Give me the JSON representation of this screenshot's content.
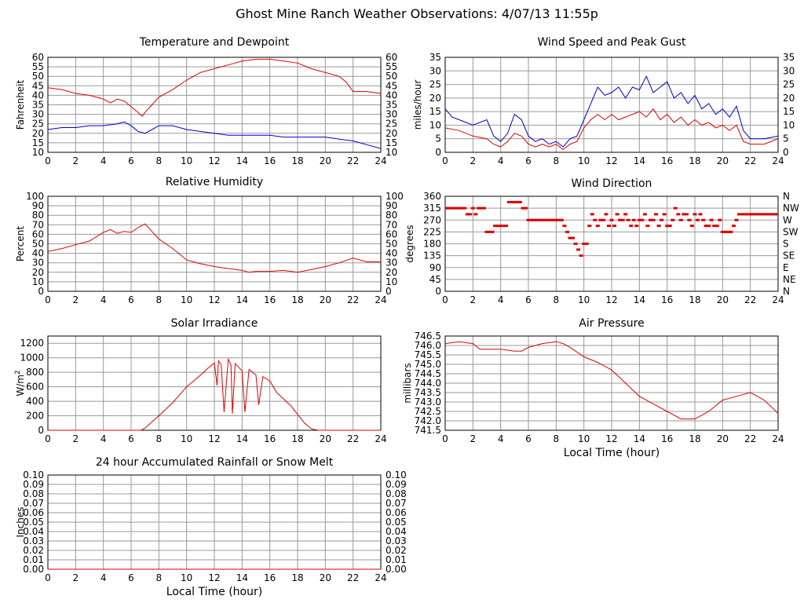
{
  "page_title": "Ghost Mine Ranch Weather Observations: 4/07/13 11:55p",
  "colors": {
    "red": "#dd0000",
    "blue": "#0000cc",
    "grid": "#999999",
    "frame": "#000000"
  },
  "chart_data": [
    {
      "id": "temp",
      "type": "line",
      "title": "Temperature and Dewpoint",
      "ylabel": "Fahrenheit",
      "xlabel": "",
      "xlim": [
        0,
        24
      ],
      "ylim": [
        10,
        60
      ],
      "xticks": [
        0,
        2,
        4,
        6,
        8,
        10,
        12,
        14,
        16,
        18,
        20,
        22,
        24
      ],
      "yticks": [
        10,
        15,
        20,
        25,
        30,
        35,
        40,
        45,
        50,
        55,
        60
      ],
      "right_ticks": [
        "10",
        "15",
        "20",
        "25",
        "30",
        "35",
        "40",
        "45",
        "50",
        "55",
        "60"
      ],
      "grid": true,
      "series": [
        {
          "color": "red",
          "x": [
            0,
            1,
            2,
            3,
            4,
            4.5,
            5,
            5.5,
            6,
            6.5,
            6.8,
            7,
            7.5,
            8,
            9,
            10,
            11,
            12,
            13,
            14,
            15,
            16,
            17,
            18,
            19,
            20,
            21,
            21.5,
            22,
            23,
            24
          ],
          "y": [
            44,
            43,
            41,
            40,
            38,
            36,
            38,
            37,
            34,
            31,
            29,
            31,
            35,
            39,
            43,
            48,
            52,
            54,
            56,
            58,
            59,
            59,
            58,
            57,
            54,
            52,
            50,
            47,
            42,
            42,
            41
          ]
        },
        {
          "color": "blue",
          "x": [
            0,
            1,
            2,
            3,
            4,
            5,
            5.5,
            6,
            6.5,
            7,
            7.5,
            8,
            9,
            10,
            11,
            12,
            13,
            14,
            15,
            16,
            17,
            18,
            19,
            20,
            21,
            22,
            23,
            24
          ],
          "y": [
            22,
            23,
            23,
            24,
            24,
            25,
            26,
            24,
            21,
            20,
            22,
            24,
            24,
            22,
            21,
            20,
            19,
            19,
            19,
            19,
            18,
            18,
            18,
            18,
            17,
            16,
            14,
            12
          ]
        }
      ]
    },
    {
      "id": "wind",
      "type": "line",
      "title": "Wind Speed and Peak Gust",
      "ylabel": "miles/hour",
      "xlabel": "",
      "xlim": [
        0,
        24
      ],
      "ylim": [
        0,
        35
      ],
      "xticks": [
        0,
        2,
        4,
        6,
        8,
        10,
        12,
        14,
        16,
        18,
        20,
        22,
        24
      ],
      "yticks": [
        0,
        5,
        10,
        15,
        20,
        25,
        30,
        35
      ],
      "right_ticks": [
        "0",
        "5",
        "10",
        "15",
        "20",
        "25",
        "30",
        "35"
      ],
      "grid": true,
      "series": [
        {
          "color": "blue",
          "x": [
            0,
            0.5,
            1,
            2,
            3,
            3.5,
            4,
            4.5,
            5,
            5.5,
            6,
            6.5,
            7,
            7.5,
            8,
            8.5,
            9,
            9.5,
            10,
            10.5,
            11,
            11.5,
            12,
            12.5,
            13,
            13.5,
            14,
            14.5,
            15,
            15.5,
            16,
            16.5,
            17,
            17.5,
            18,
            18.5,
            19,
            19.5,
            20,
            20.5,
            21,
            21.5,
            22,
            23,
            24
          ],
          "y": [
            16,
            13,
            12,
            10,
            12,
            6,
            4,
            7,
            14,
            12,
            6,
            4,
            5,
            3,
            4,
            2,
            5,
            6,
            12,
            18,
            24,
            21,
            22,
            24,
            20,
            24,
            23,
            28,
            22,
            24,
            26,
            20,
            22,
            18,
            21,
            16,
            18,
            14,
            16,
            13,
            17,
            8,
            5,
            5,
            6
          ]
        },
        {
          "color": "red",
          "x": [
            0,
            1,
            2,
            3,
            3.5,
            4,
            4.5,
            5,
            5.5,
            6,
            6.5,
            7,
            7.5,
            8,
            8.5,
            9,
            9.5,
            10,
            10.5,
            11,
            11.5,
            12,
            12.5,
            13,
            13.5,
            14,
            14.5,
            15,
            15.5,
            16,
            16.5,
            17,
            17.5,
            18,
            18.5,
            19,
            19.5,
            20,
            20.5,
            21,
            21.5,
            22,
            23,
            24
          ],
          "y": [
            9,
            8,
            6,
            5,
            3,
            2,
            4,
            7,
            6,
            3,
            2,
            3,
            2,
            3,
            1,
            3,
            4,
            9,
            12,
            14,
            12,
            14,
            12,
            13,
            14,
            15,
            13,
            16,
            12,
            14,
            11,
            13,
            10,
            12,
            10,
            11,
            9,
            10,
            8,
            10,
            4,
            3,
            3,
            5
          ]
        }
      ]
    },
    {
      "id": "humidity",
      "type": "line",
      "title": "Relative Humidity",
      "ylabel": "Percent",
      "xlabel": "",
      "xlim": [
        0,
        24
      ],
      "ylim": [
        0,
        100
      ],
      "xticks": [
        0,
        2,
        4,
        6,
        8,
        10,
        12,
        14,
        16,
        18,
        20,
        22,
        24
      ],
      "yticks": [
        0,
        10,
        20,
        30,
        40,
        50,
        60,
        70,
        80,
        90,
        100
      ],
      "right_ticks": [
        "0",
        "10",
        "20",
        "30",
        "40",
        "50",
        "60",
        "70",
        "80",
        "90",
        "100"
      ],
      "grid": true,
      "series": [
        {
          "color": "red",
          "x": [
            0,
            1,
            2,
            3,
            4,
            4.5,
            5,
            5.5,
            6,
            6.5,
            7,
            7.5,
            8,
            9,
            10,
            11,
            12,
            13,
            14,
            14.5,
            15,
            16,
            17,
            18,
            19,
            20,
            21,
            22,
            23,
            24
          ],
          "y": [
            42,
            45,
            49,
            53,
            62,
            65,
            61,
            63,
            62,
            67,
            71,
            63,
            55,
            45,
            33,
            29,
            26,
            24,
            22,
            20,
            21,
            21,
            22,
            20,
            23,
            26,
            30,
            35,
            31,
            31
          ]
        }
      ]
    },
    {
      "id": "direction",
      "type": "scatter",
      "title": "Wind Direction",
      "ylabel": "degrees",
      "xlabel": "",
      "xlim": [
        0,
        24
      ],
      "ylim": [
        0,
        360
      ],
      "xticks": [
        0,
        2,
        4,
        6,
        8,
        10,
        12,
        14,
        16,
        18,
        20,
        22,
        24
      ],
      "yticks": [
        0,
        45,
        90,
        135,
        180,
        225,
        270,
        315,
        360
      ],
      "right_ticks": [
        "N",
        "NE",
        "E",
        "SE",
        "S",
        "SW",
        "W",
        "NW",
        "N"
      ],
      "grid": true,
      "series": [
        {
          "color": "red",
          "x": [
            0,
            0.2,
            0.4,
            0.6,
            0.8,
            1,
            1.2,
            1.4,
            1.6,
            1.8,
            2,
            2.2,
            2.4,
            2.6,
            2.8,
            3,
            3.2,
            3.4,
            3.6,
            3.8,
            4,
            4.2,
            4.4,
            4.6,
            4.8,
            5,
            5.2,
            5.4,
            5.6,
            5.8,
            6,
            6.2,
            6.4,
            6.6,
            6.8,
            7,
            7.2,
            7.4,
            7.6,
            7.8,
            8,
            8.2,
            8.4,
            8.6,
            8.8,
            9,
            9.2,
            9.4,
            9.6,
            9.8,
            10,
            10.2,
            10.4,
            10.6,
            10.8,
            11,
            11.2,
            11.4,
            11.6,
            11.8,
            12,
            12.2,
            12.4,
            12.6,
            12.8,
            13,
            13.2,
            13.4,
            13.6,
            13.8,
            14,
            14.2,
            14.4,
            14.6,
            14.8,
            15,
            15.2,
            15.4,
            15.6,
            15.8,
            16,
            16.2,
            16.4,
            16.6,
            16.8,
            17,
            17.2,
            17.4,
            17.6,
            17.8,
            18,
            18.2,
            18.4,
            18.6,
            18.8,
            19,
            19.2,
            19.4,
            19.6,
            19.8,
            20,
            20.2,
            20.4,
            20.6,
            20.8,
            21,
            21.2,
            21.4,
            21.6,
            21.8,
            22,
            22.2,
            22.4,
            22.6,
            22.8,
            23,
            23.2,
            23.4,
            23.6,
            23.8,
            24
          ],
          "y": [
            315,
            315,
            315,
            315,
            315,
            315,
            315,
            315,
            292,
            292,
            315,
            292,
            315,
            315,
            315,
            225,
            225,
            225,
            248,
            248,
            248,
            248,
            248,
            338,
            338,
            338,
            338,
            338,
            315,
            315,
            270,
            270,
            270,
            270,
            270,
            270,
            270,
            270,
            270,
            270,
            270,
            270,
            270,
            248,
            225,
            202,
            202,
            180,
            158,
            135,
            180,
            180,
            248,
            292,
            270,
            248,
            270,
            270,
            292,
            248,
            270,
            248,
            292,
            270,
            270,
            292,
            270,
            248,
            270,
            248,
            270,
            270,
            292,
            248,
            270,
            270,
            292,
            248,
            270,
            292,
            248,
            248,
            270,
            315,
            292,
            270,
            292,
            292,
            270,
            248,
            292,
            270,
            292,
            270,
            248,
            248,
            270,
            248,
            248,
            270,
            225,
            225,
            225,
            225,
            248,
            270,
            292,
            292,
            292,
            292,
            292,
            292,
            292,
            292,
            292,
            292,
            292,
            292,
            292,
            292,
            292
          ]
        }
      ]
    },
    {
      "id": "solar",
      "type": "line",
      "title": "Solar Irradiance",
      "ylabel": "W/m",
      "ylabel_sup": "2",
      "xlabel": "",
      "xlim": [
        0,
        24
      ],
      "ylim": [
        0,
        1300
      ],
      "xticks": [
        0,
        2,
        4,
        6,
        8,
        10,
        12,
        14,
        16,
        18,
        20,
        22,
        24
      ],
      "yticks": [
        0,
        200,
        400,
        600,
        800,
        1000,
        1200
      ],
      "right_ticks": [],
      "grid": true,
      "series": [
        {
          "color": "red",
          "x": [
            0,
            2,
            4,
            6,
            6.7,
            7,
            8,
            9,
            10,
            10.5,
            11,
            11.5,
            12,
            12.2,
            12.3,
            12.5,
            12.7,
            13,
            13.2,
            13.3,
            13.5,
            13.7,
            14,
            14.2,
            14.5,
            15,
            15.2,
            15.5,
            16,
            16.5,
            17,
            17.5,
            18,
            18.5,
            19,
            19.5,
            24
          ],
          "y": [
            0,
            0,
            0,
            0,
            0,
            30,
            200,
            380,
            600,
            680,
            760,
            850,
            930,
            620,
            960,
            900,
            250,
            980,
            900,
            230,
            920,
            880,
            820,
            250,
            840,
            760,
            350,
            740,
            680,
            520,
            430,
            340,
            220,
            100,
            20,
            0,
            0
          ]
        }
      ]
    },
    {
      "id": "pressure",
      "type": "line",
      "title": "Air Pressure",
      "ylabel": "millibars",
      "xlabel": "Local Time (hour)",
      "xlim": [
        0,
        24
      ],
      "ylim": [
        741.5,
        746.5
      ],
      "xticks": [
        0,
        2,
        4,
        6,
        8,
        10,
        12,
        14,
        16,
        18,
        20,
        22,
        24
      ],
      "yticks": [
        741.5,
        742.0,
        742.5,
        743.0,
        743.5,
        744.0,
        744.5,
        745.0,
        745.5,
        746.0,
        746.5
      ],
      "ytick_labels": [
        "741.5",
        "742.0",
        "742.5",
        "743.0",
        "743.5",
        "744.0",
        "744.5",
        "745.0",
        "745.5",
        "746.0",
        "746.5"
      ],
      "right_ticks": [],
      "grid": true,
      "series": [
        {
          "color": "red",
          "x": [
            0,
            1,
            2,
            2.5,
            3,
            4,
            5,
            5.5,
            6,
            7,
            8,
            8.5,
            9,
            10,
            11,
            12,
            13,
            14,
            15,
            16,
            17,
            18,
            19,
            20,
            21,
            22,
            23,
            24
          ],
          "y": [
            746.1,
            746.2,
            746.1,
            745.8,
            745.8,
            745.8,
            745.7,
            745.7,
            745.9,
            746.1,
            746.2,
            746.1,
            745.9,
            745.4,
            745.1,
            744.7,
            744.0,
            743.3,
            742.9,
            742.5,
            742.1,
            742.1,
            742.5,
            743.1,
            743.3,
            743.5,
            743.1,
            742.4
          ]
        }
      ]
    },
    {
      "id": "rain",
      "type": "line",
      "title": "24 hour Accumulated Rainfall or Snow Melt",
      "ylabel": "Inches",
      "xlabel": "Local Time (hour)",
      "xlim": [
        0,
        24
      ],
      "ylim": [
        0,
        0.1
      ],
      "xticks": [
        0,
        2,
        4,
        6,
        8,
        10,
        12,
        14,
        16,
        18,
        20,
        22,
        24
      ],
      "yticks": [
        0,
        0.01,
        0.02,
        0.03,
        0.04,
        0.05,
        0.06,
        0.07,
        0.08,
        0.09,
        0.1
      ],
      "ytick_labels": [
        "0.00",
        "0.01",
        "0.02",
        "0.03",
        "0.04",
        "0.05",
        "0.06",
        "0.07",
        "0.08",
        "0.09",
        "0.10"
      ],
      "right_ticks": [
        "0.00",
        "0.01",
        "0.02",
        "0.03",
        "0.04",
        "0.05",
        "0.06",
        "0.07",
        "0.08",
        "0.09",
        "0.10"
      ],
      "grid": true,
      "series": [
        {
          "color": "red",
          "x": [
            0,
            24
          ],
          "y": [
            0,
            0
          ]
        }
      ]
    }
  ]
}
